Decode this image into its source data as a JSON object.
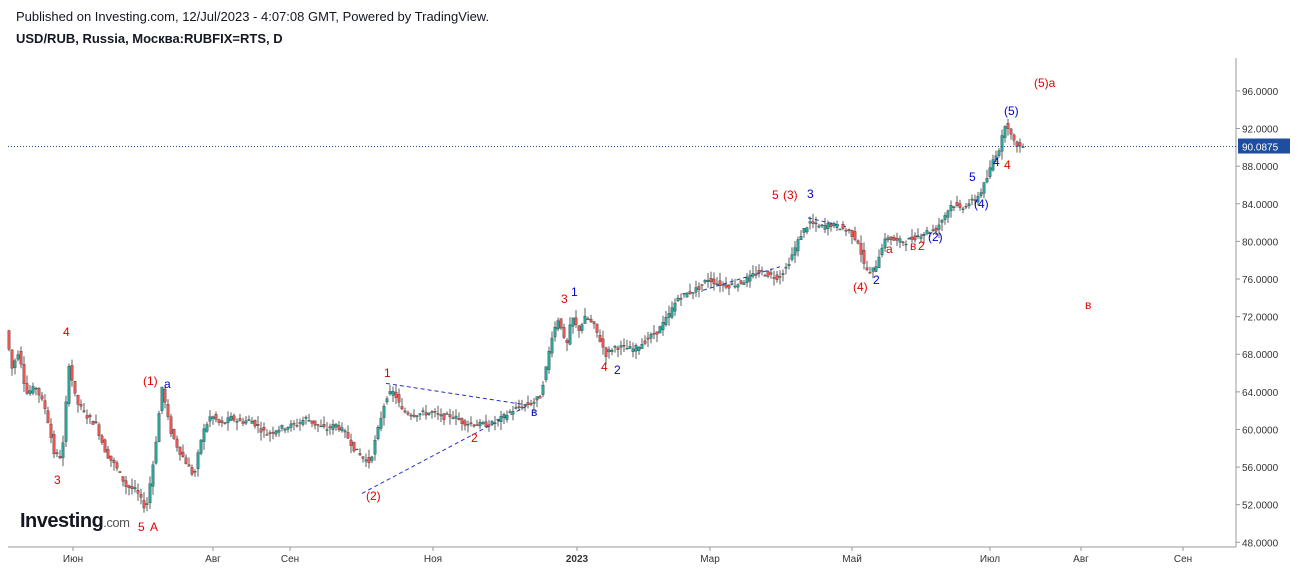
{
  "header": {
    "published": "Published on Investing.com, 12/Jul/2023 - 4:07:08 GMT, Powered by TradingView.",
    "symbol": "USD/RUB, Russia, Москва:RUBFIX=RTS, D"
  },
  "logo": {
    "main": "Investing",
    "suffix": ".com"
  },
  "colors": {
    "up": "#26a69a",
    "down": "#ef5350",
    "wave_red": "#e00000",
    "wave_blue": "#0000cc",
    "price_line": "#1f4e9e",
    "price_tag_bg": "#1f4e9e",
    "axis": "#999999"
  },
  "chart_data": {
    "type": "candlestick",
    "title": "USD/RUB, Russia, Москва:RUBFIX=RTS, D",
    "last_price": 90.0875,
    "last_price_label": "90.0875",
    "ylim": [
      47.5,
      99.5
    ],
    "y_ticks": [
      "96.0000",
      "92.0000",
      "88.0000",
      "84.0000",
      "80.0000",
      "76.0000",
      "72.0000",
      "68.0000",
      "64.0000",
      "60.0000",
      "56.0000",
      "52.0000",
      "48.0000"
    ],
    "x_ticks": [
      "Июн",
      "Авг",
      "Сен",
      "Ноя",
      "2023",
      "Мар",
      "Май",
      "Июл",
      "Авг",
      "Сен"
    ],
    "price_path": [
      [
        0,
        70.5
      ],
      [
        6,
        66.5
      ],
      [
        13,
        68.5
      ],
      [
        20,
        63.8
      ],
      [
        30,
        64.5
      ],
      [
        40,
        62.0
      ],
      [
        48,
        57.5
      ],
      [
        56,
        57.0
      ],
      [
        63,
        67.0
      ],
      [
        70,
        63.0
      ],
      [
        80,
        61.5
      ],
      [
        90,
        60.5
      ],
      [
        100,
        57.5
      ],
      [
        110,
        56.0
      ],
      [
        120,
        54.0
      ],
      [
        130,
        53.5
      ],
      [
        140,
        51.5
      ],
      [
        148,
        57.0
      ],
      [
        156,
        64.5
      ],
      [
        164,
        60.0
      ],
      [
        172,
        58.0
      ],
      [
        180,
        56.5
      ],
      [
        188,
        55.0
      ],
      [
        196,
        59.5
      ],
      [
        205,
        61.5
      ],
      [
        215,
        60.5
      ],
      [
        225,
        61.2
      ],
      [
        235,
        60.8
      ],
      [
        245,
        61.0
      ],
      [
        255,
        60.0
      ],
      [
        262,
        59.5
      ],
      [
        270,
        60.0
      ],
      [
        280,
        60.3
      ],
      [
        290,
        60.5
      ],
      [
        300,
        61.2
      ],
      [
        310,
        60.5
      ],
      [
        320,
        60.0
      ],
      [
        330,
        60.5
      ],
      [
        340,
        59.5
      ],
      [
        348,
        58.0
      ],
      [
        356,
        57.0
      ],
      [
        364,
        56.5
      ],
      [
        372,
        60.0
      ],
      [
        380,
        63.5
      ],
      [
        388,
        64.0
      ],
      [
        396,
        62.0
      ],
      [
        406,
        61.6
      ],
      [
        416,
        61.7
      ],
      [
        426,
        61.8
      ],
      [
        436,
        61.3
      ],
      [
        446,
        61.5
      ],
      [
        456,
        60.8
      ],
      [
        466,
        60.6
      ],
      [
        476,
        60.5
      ],
      [
        486,
        60.6
      ],
      [
        496,
        61.2
      ],
      [
        506,
        62.0
      ],
      [
        516,
        62.5
      ],
      [
        526,
        62.8
      ],
      [
        534,
        63.5
      ],
      [
        540,
        66.5
      ],
      [
        546,
        70.0
      ],
      [
        553,
        72.0
      ],
      [
        560,
        68.5
      ],
      [
        566,
        72.0
      ],
      [
        572,
        70.5
      ],
      [
        580,
        72.0
      ],
      [
        588,
        71.0
      ],
      [
        594,
        69.5
      ],
      [
        600,
        68.0
      ],
      [
        608,
        68.8
      ],
      [
        618,
        68.7
      ],
      [
        628,
        68.5
      ],
      [
        640,
        69.5
      ],
      [
        652,
        70.5
      ],
      [
        662,
        72.0
      ],
      [
        672,
        74.0
      ],
      [
        682,
        74.5
      ],
      [
        692,
        75.0
      ],
      [
        702,
        76.0
      ],
      [
        712,
        75.5
      ],
      [
        722,
        75.3
      ],
      [
        732,
        75.5
      ],
      [
        742,
        76.0
      ],
      [
        752,
        76.8
      ],
      [
        762,
        76.5
      ],
      [
        772,
        76.2
      ],
      [
        780,
        77.2
      ],
      [
        788,
        79.0
      ],
      [
        796,
        81.0
      ],
      [
        804,
        82.0
      ],
      [
        814,
        81.5
      ],
      [
        824,
        81.8
      ],
      [
        834,
        81.5
      ],
      [
        844,
        81.0
      ],
      [
        852,
        80.0
      ],
      [
        858,
        77.5
      ],
      [
        864,
        76.5
      ],
      [
        870,
        77.5
      ],
      [
        876,
        79.5
      ],
      [
        882,
        80.5
      ],
      [
        890,
        80.0
      ],
      [
        900,
        80.0
      ],
      [
        910,
        80.5
      ],
      [
        920,
        81.0
      ],
      [
        930,
        81.3
      ],
      [
        940,
        83.0
      ],
      [
        946,
        84.0
      ],
      [
        954,
        83.5
      ],
      [
        962,
        84.0
      ],
      [
        970,
        84.5
      ],
      [
        976,
        85.5
      ],
      [
        982,
        87.0
      ],
      [
        988,
        89.0
      ],
      [
        994,
        90.0
      ],
      [
        1000,
        93.0
      ],
      [
        1004,
        91.5
      ],
      [
        1008,
        90.5
      ],
      [
        1014,
        90.0875
      ]
    ],
    "annotations": [
      {
        "text": "4",
        "color": "red"
      },
      {
        "text": "3",
        "color": "red"
      },
      {
        "text": "5",
        "color": "red"
      },
      {
        "text": "A",
        "color": "red"
      },
      {
        "text": "(1)",
        "color": "red"
      },
      {
        "text": "а",
        "color": "blue"
      },
      {
        "text": "1",
        "color": "red"
      },
      {
        "text": "(2)",
        "color": "red"
      },
      {
        "text": "2",
        "color": "red"
      },
      {
        "text": "в",
        "color": "blue"
      },
      {
        "text": "3",
        "color": "red"
      },
      {
        "text": "1",
        "color": "blue"
      },
      {
        "text": "4",
        "color": "red"
      },
      {
        "text": "2",
        "color": "blue"
      },
      {
        "text": "5",
        "color": "red"
      },
      {
        "text": "(3)",
        "color": "red"
      },
      {
        "text": "3",
        "color": "blue"
      },
      {
        "text": "(4)",
        "color": "red"
      },
      {
        "text": "2",
        "color": "blue"
      },
      {
        "text": "а",
        "color": "red"
      },
      {
        "text": "в",
        "color": "red"
      },
      {
        "text": "2",
        "color": "red"
      },
      {
        "text": "(2)",
        "color": "blue"
      },
      {
        "text": "(4)",
        "color": "blue"
      },
      {
        "text": "5",
        "color": "blue"
      },
      {
        "text": "(5)",
        "color": "blue"
      },
      {
        "text": "4",
        "color": "blue"
      },
      {
        "text": "4",
        "color": "red"
      },
      {
        "text": "(5)а",
        "color": "red"
      },
      {
        "text": "в",
        "color": "red"
      }
    ]
  }
}
